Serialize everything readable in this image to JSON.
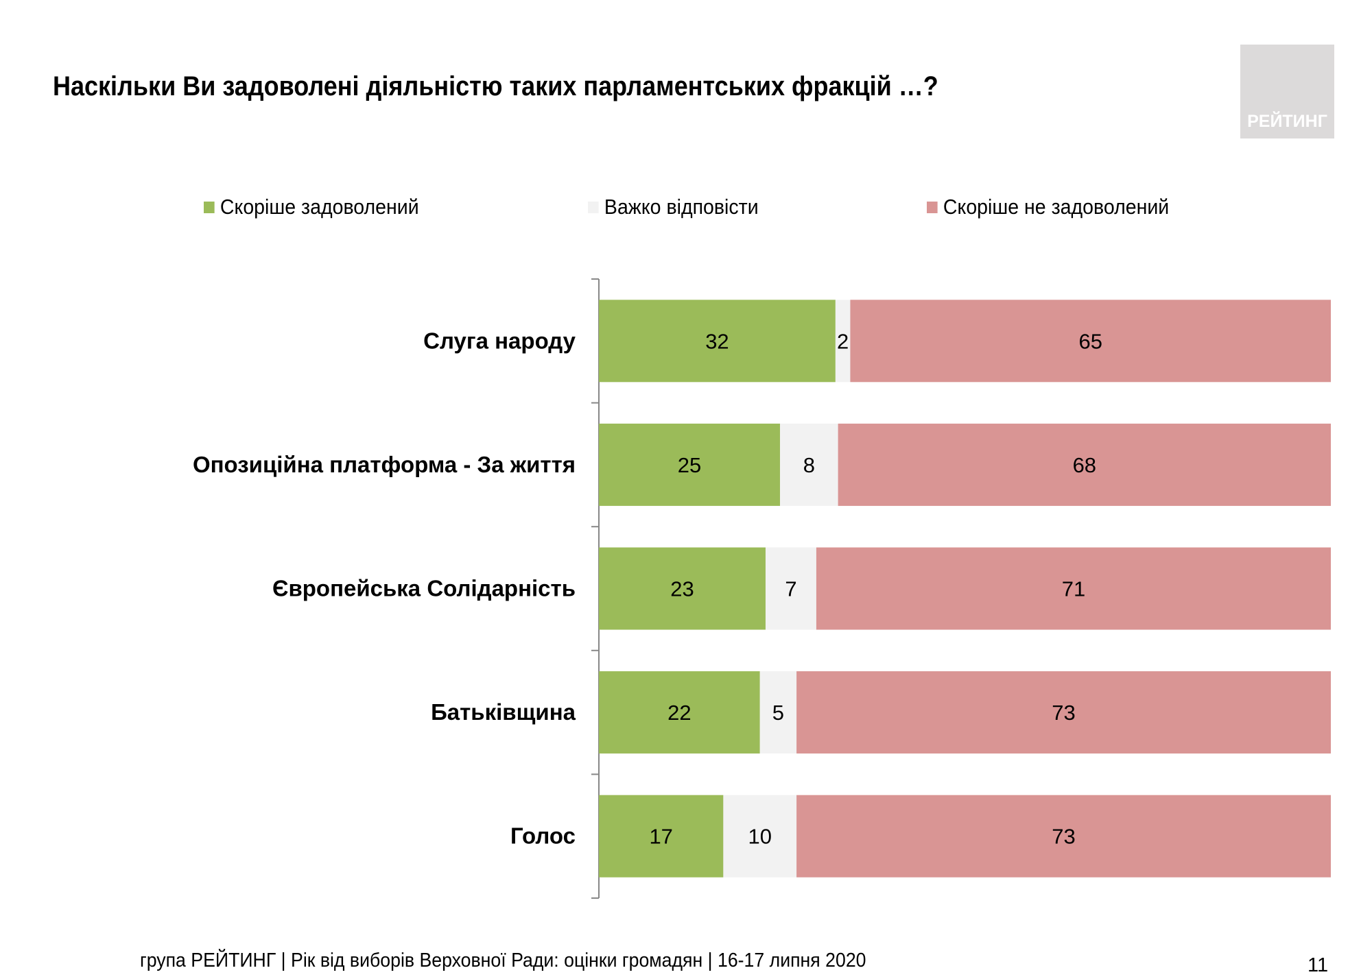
{
  "title": "Наскільки Ви задоволені діяльністю таких парламентських фракцій …?",
  "logo_text": "РЕЙТИНГ",
  "footer": "група РЕЙТИНГ | Рік від виборів Верховної Ради: оцінки громадян | 16-17 липня 2020",
  "page_number": "11",
  "chart_data": {
    "type": "bar",
    "orientation": "horizontal",
    "stacked": true,
    "legend_position": "top",
    "grid": false,
    "categories": [
      "Слуга народу",
      "Опозиційна платформа - За життя",
      "Європейська Солідарність",
      "Батьківщина",
      "Голос"
    ],
    "series": [
      {
        "name": "Скоріше задоволений",
        "color": "#9bbb59",
        "values": [
          32,
          25,
          23,
          22,
          17
        ]
      },
      {
        "name": "Важко відповісти",
        "color": "#f2f2f2",
        "values": [
          2,
          8,
          7,
          5,
          10
        ]
      },
      {
        "name": "Скоріше не задоволений",
        "color": "#d99594",
        "values": [
          65,
          68,
          71,
          73,
          73
        ]
      }
    ]
  }
}
